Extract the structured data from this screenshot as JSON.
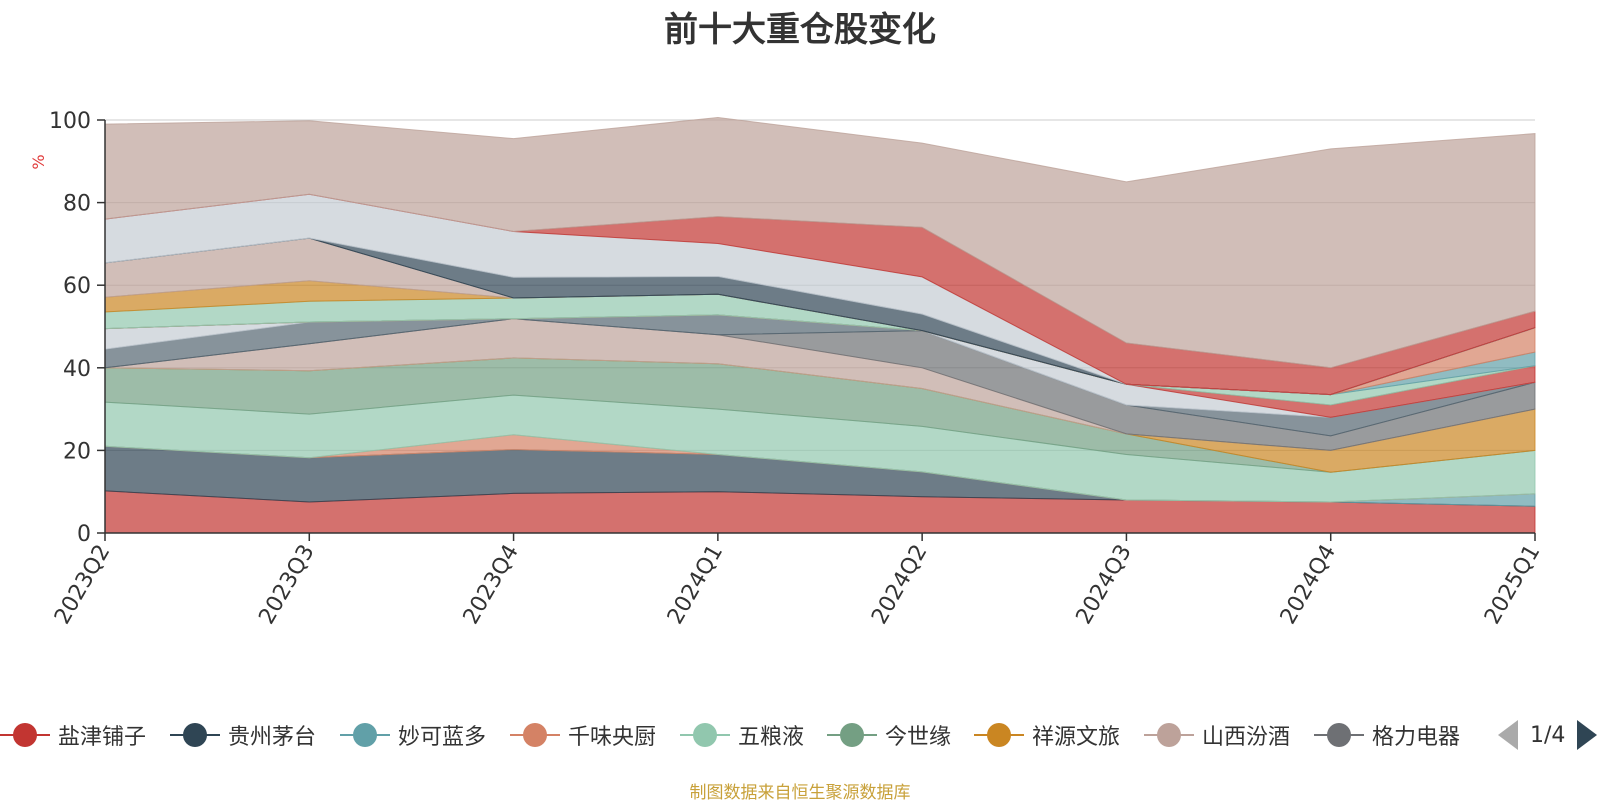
{
  "title": "前十大重仓股变化",
  "source_note": "制图数据来自恒生聚源数据库",
  "legend_pager": "1/4",
  "chart_data": {
    "type": "area",
    "stacked": true,
    "title": "前十大重仓股变化",
    "ylabel": "%",
    "ylim": [
      0,
      100
    ],
    "yticks": [
      0,
      20,
      40,
      60,
      80,
      100
    ],
    "grid": true,
    "legend_position": "bottom",
    "categories": [
      "2023Q2",
      "2023Q3",
      "2023Q4",
      "2024Q1",
      "2024Q2",
      "2024Q3",
      "2024Q4",
      "2025Q1"
    ],
    "series": [
      {
        "name": "盐津铺子",
        "color": "#c23531",
        "values": [
          10.2,
          7.5,
          9.6,
          10.0,
          8.8,
          8.0,
          7.5,
          6.5
        ]
      },
      {
        "name": "贵州茅台",
        "color": "#2f4554",
        "values": [
          10.8,
          10.7,
          10.6,
          9.0,
          6.0,
          0,
          0,
          0
        ]
      },
      {
        "name": "妙可蓝多",
        "color": "#61a0a8",
        "values": [
          0,
          0,
          0,
          0,
          0,
          0,
          0,
          3.0
        ]
      },
      {
        "name": "千味央厨",
        "color": "#d48265",
        "values": [
          0,
          0,
          3.6,
          0,
          0,
          0,
          0,
          0
        ]
      },
      {
        "name": "五粮液",
        "color": "#91c7ae",
        "values": [
          10.7,
          10.6,
          9.6,
          11.0,
          11.0,
          11.0,
          7.2,
          10.5
        ]
      },
      {
        "name": "今世缘",
        "color": "#749f83",
        "values": [
          8.3,
          10.5,
          9.0,
          11.0,
          9.2,
          5.0,
          0,
          0
        ]
      },
      {
        "name": "祥源文旅",
        "color": "#ca8622",
        "values": [
          0,
          0,
          0,
          0,
          0,
          0,
          5.3,
          10.0
        ]
      },
      {
        "name": "山西汾酒",
        "color": "#bda29a",
        "values": [
          0,
          6.5,
          9.5,
          7.0,
          5.0,
          0,
          0,
          0
        ]
      },
      {
        "name": "格力电器",
        "color": "#6e7074",
        "values": [
          0,
          0,
          0,
          0,
          9.0,
          7.0,
          3.5,
          6.5
        ]
      },
      {
        "name": "",
        "color": "#546570",
        "values": [
          4.5,
          5.3,
          0,
          4.8,
          0,
          0,
          4.5,
          0
        ]
      },
      {
        "name": "",
        "color": "#c4ccd3",
        "values": [
          5.0,
          0,
          0,
          0,
          0,
          5.0,
          0,
          0
        ]
      },
      {
        "name": "",
        "color": "#c23531",
        "values": [
          0,
          0,
          0,
          0,
          0,
          0,
          3.0,
          4.0
        ]
      },
      {
        "name": "",
        "color": "#91c7ae",
        "values": [
          0,
          0,
          0,
          0,
          0,
          0,
          2.5,
          0
        ]
      },
      {
        "name": "",
        "color": "#61a0a8",
        "values": [
          0,
          0,
          0,
          0,
          0,
          0,
          0,
          3.3
        ]
      },
      {
        "name": "",
        "color": "#d48265",
        "values": [
          0,
          0,
          0,
          0,
          0,
          0,
          0,
          5.9
        ]
      },
      {
        "name": "",
        "color": "#91c7ae",
        "values": [
          4.0,
          5.0,
          5.0,
          5.0,
          0,
          0,
          0,
          0
        ]
      },
      {
        "name": "",
        "color": "#ca8622",
        "values": [
          3.6,
          5.0,
          0,
          0,
          0,
          0,
          0,
          0
        ]
      },
      {
        "name": "",
        "color": "#bda29a",
        "values": [
          8.3,
          10.3,
          0,
          0,
          0,
          0,
          0,
          0
        ]
      },
      {
        "name": "",
        "color": "#6e7074",
        "values": [
          0,
          0,
          0,
          0,
          0,
          0,
          0,
          0
        ]
      },
      {
        "name": "",
        "color": "#2f4554",
        "values": [
          0,
          0,
          5.0,
          4.3,
          4.0,
          0,
          0,
          0
        ]
      },
      {
        "name": "",
        "color": "#c4ccd3",
        "values": [
          10.6,
          10.6,
          11.1,
          8.0,
          9.0,
          0,
          0,
          0
        ]
      },
      {
        "name": "",
        "color": "#c23531",
        "values": [
          0,
          0,
          0,
          6.5,
          12.0,
          10.0,
          6.5,
          4.0
        ]
      },
      {
        "name": "",
        "color": "#bda29a",
        "values": [
          23.0,
          17.8,
          22.5,
          24.0,
          20.4,
          39.0,
          53.0,
          43.0
        ]
      }
    ]
  }
}
